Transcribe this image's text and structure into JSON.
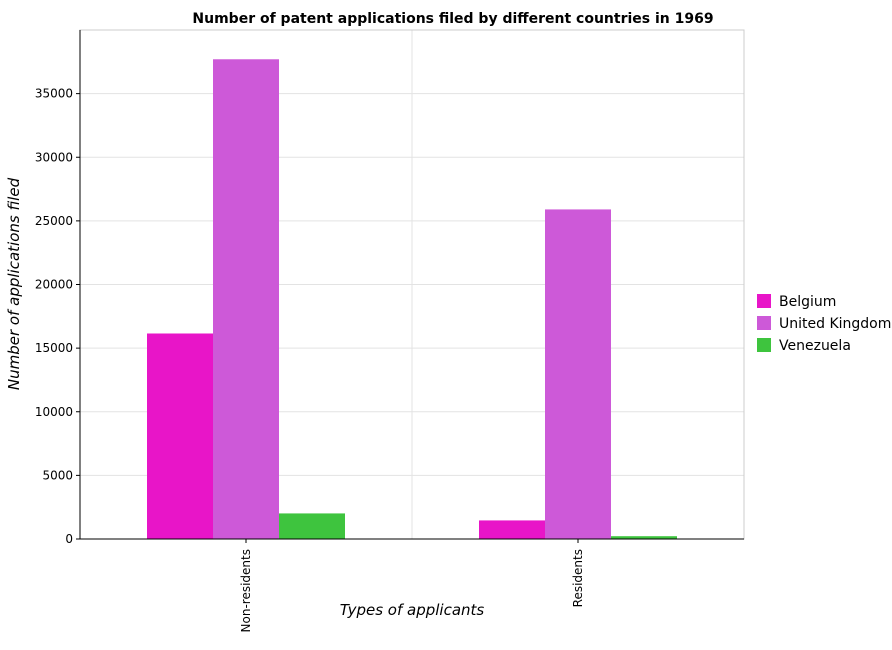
{
  "chart_data": {
    "type": "bar",
    "title": "Number of patent applications filed by different countries in 1969",
    "xlabel": "Types of applicants",
    "ylabel": "Number of applications filed",
    "categories": [
      "Non-residents",
      "Residents"
    ],
    "series": [
      {
        "name": "Belgium",
        "color": "#e815c8",
        "values": [
          16150,
          1460
        ]
      },
      {
        "name": "United Kingdom",
        "color": "#cd59d8",
        "values": [
          37700,
          25900
        ]
      },
      {
        "name": "Venezuela",
        "color": "#3ec43e",
        "values": [
          2010,
          220
        ]
      }
    ],
    "ylim": [
      0,
      40000
    ],
    "yticks": [
      0,
      5000,
      10000,
      15000,
      20000,
      25000,
      30000,
      35000
    ],
    "ytick_labels": [
      "0",
      "5000",
      "10000",
      "15000",
      "20000",
      "25000",
      "30000",
      "35000"
    ],
    "grid": true,
    "legend_position": "right"
  }
}
